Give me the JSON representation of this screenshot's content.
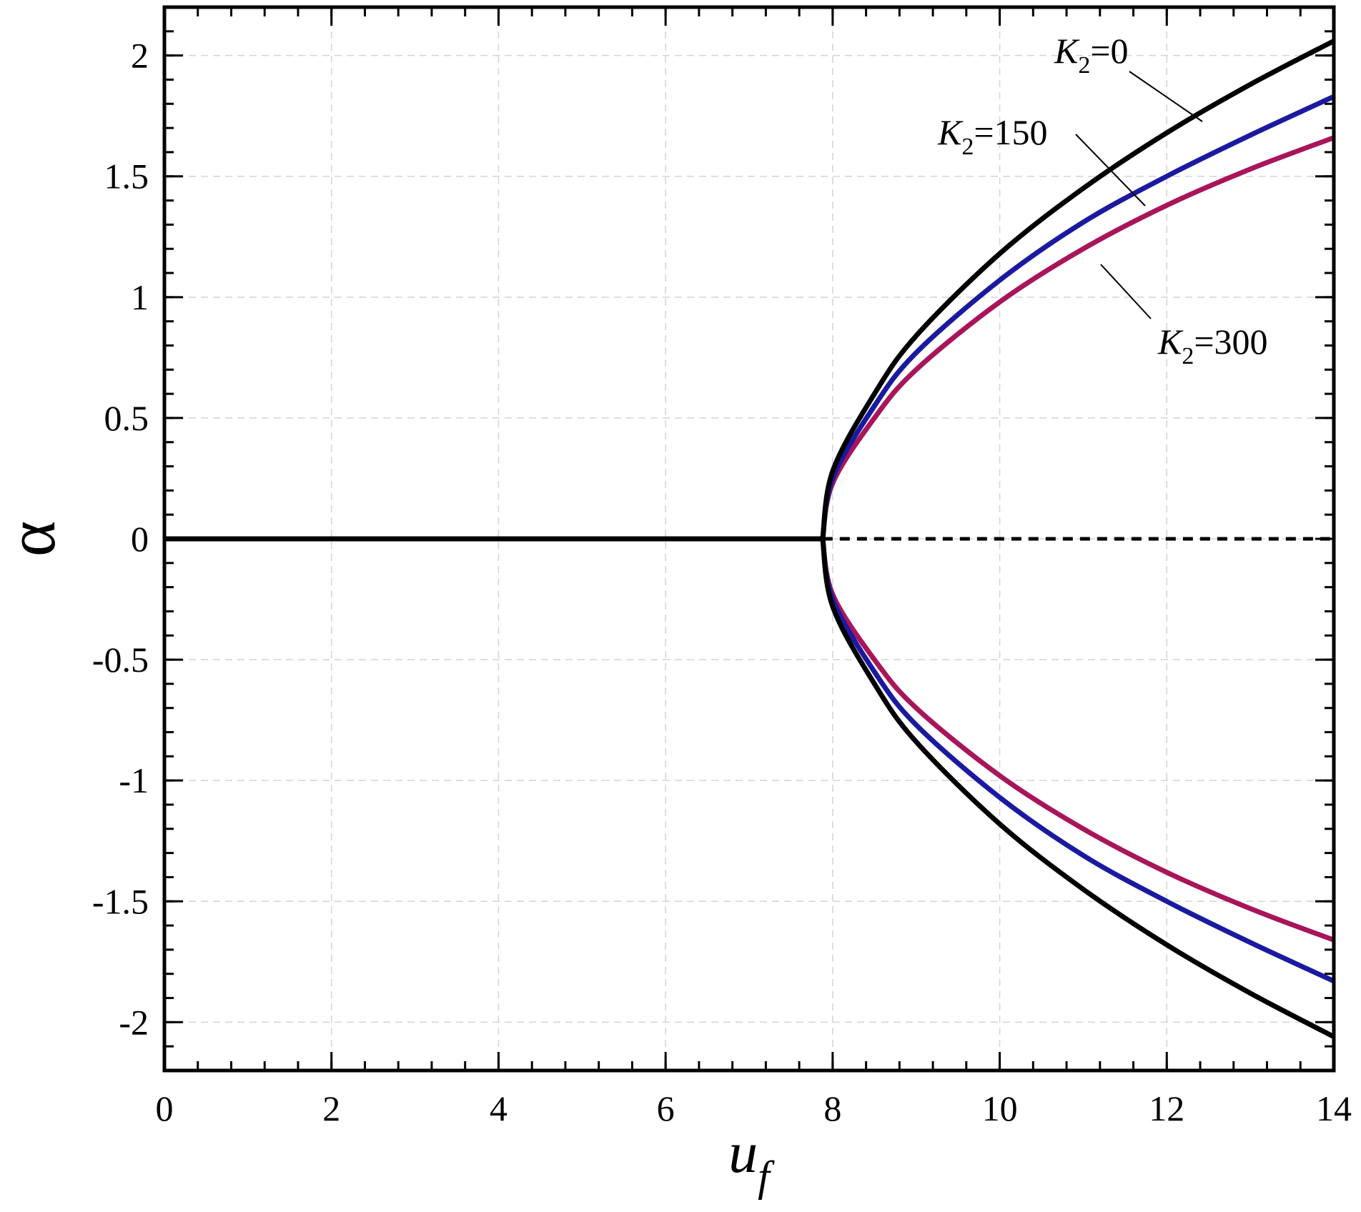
{
  "chart_data": {
    "type": "line",
    "xlabel": "u",
    "xlabel_sub": "f",
    "ylabel": "α",
    "xlim": [
      0,
      14
    ],
    "ylim": [
      -2.2,
      2.2
    ],
    "x_ticks": [
      0,
      2,
      4,
      6,
      8,
      10,
      12,
      14
    ],
    "x_tick_labels": [
      "0",
      "2",
      "4",
      "6",
      "8",
      "10",
      "12",
      "14"
    ],
    "y_ticks": [
      2,
      1.5,
      1,
      0.5,
      0,
      -0.5,
      -1,
      -1.5,
      -2
    ],
    "y_tick_labels": [
      "2",
      "1.5",
      "1",
      "0.5",
      "0",
      "-0.5",
      "-1",
      "-1.5",
      "-2"
    ],
    "grid": true,
    "bifurcation_point": 7.88,
    "trivial_branch": {
      "stable": {
        "x": [
          0,
          7.88
        ],
        "y": [
          0,
          0
        ],
        "style": "solid",
        "color": "#000000"
      },
      "unstable": {
        "x": [
          7.88,
          14
        ],
        "y": [
          0,
          0
        ],
        "style": "dashed",
        "color": "#000000"
      }
    },
    "series": [
      {
        "name": "K2=0",
        "color": "#000000",
        "x": [
          7.88,
          8.0,
          8.5,
          9,
          10,
          11,
          12,
          13,
          14
        ],
        "y": [
          0,
          0.28,
          0.6,
          0.84,
          1.18,
          1.45,
          1.68,
          1.88,
          2.06
        ]
      },
      {
        "name": "K2=150",
        "color": "#1a1aa0",
        "x": [
          7.88,
          8.0,
          8.5,
          9,
          10,
          11,
          12,
          13,
          14
        ],
        "y": [
          0,
          0.25,
          0.55,
          0.77,
          1.07,
          1.31,
          1.5,
          1.67,
          1.83
        ]
      },
      {
        "name": "K2=300",
        "color": "#a8155a",
        "x": [
          7.88,
          8.0,
          8.5,
          9,
          10,
          11,
          12,
          13,
          14
        ],
        "y": [
          0,
          0.23,
          0.5,
          0.7,
          0.98,
          1.2,
          1.38,
          1.53,
          1.66
        ]
      }
    ],
    "annotations": [
      {
        "base": "K",
        "sub": "2",
        "value": "=0",
        "series": 0
      },
      {
        "base": "K",
        "sub": "2",
        "value": "=150",
        "series": 1
      },
      {
        "base": "K",
        "sub": "2",
        "value": "=300",
        "series": 2
      }
    ]
  }
}
